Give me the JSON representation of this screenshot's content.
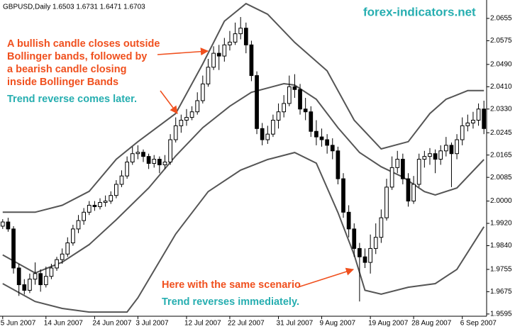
{
  "chart_data": {
    "type": "candlestick",
    "title": "GBPUSD,Daily  1.6503 1.6731 1.6471 1.6703",
    "watermark": "forex-indicators.net",
    "categories": [
      "5 Jun 2007",
      null,
      null,
      null,
      null,
      null,
      null,
      null,
      "14 Jun 2007",
      null,
      null,
      null,
      null,
      null,
      null,
      null,
      null,
      "24 Jun 2007",
      null,
      null,
      null,
      null,
      null,
      null,
      null,
      "3 Jul 2007",
      null,
      null,
      null,
      null,
      null,
      null,
      null,
      null,
      "12 Jul 2007",
      null,
      null,
      null,
      null,
      null,
      null,
      null,
      "22 Jul 2007",
      null,
      null,
      null,
      null,
      null,
      null,
      null,
      null,
      "31 Jul 2007",
      null,
      null,
      null,
      null,
      null,
      null,
      null,
      "9 Aug 2007",
      null,
      null,
      null,
      null,
      null,
      null,
      null,
      null,
      "19 Aug 2007",
      null,
      null,
      null,
      null,
      null,
      null,
      null,
      "28 Aug 2007",
      null,
      null,
      null,
      null,
      null,
      null,
      null,
      null,
      "6 Sep 2007",
      null,
      null,
      null,
      null
    ],
    "open": [
      1.991,
      1.9925,
      1.99,
      1.976,
      1.97,
      1.968,
      1.972,
      1.974,
      1.97,
      1.973,
      1.976,
      1.979,
      1.981,
      1.985,
      1.99,
      1.993,
      1.996,
      1.9985,
      1.998,
      1.9995,
      2.0,
      2.002,
      2.006,
      2.009,
      2.014,
      2.017,
      2.0175,
      2.016,
      2.0135,
      2.015,
      2.013,
      2.014,
      2.022,
      2.027,
      2.029,
      2.03,
      2.032,
      2.036,
      2.042,
      2.048,
      2.053,
      2.052,
      2.056,
      2.057,
      2.06,
      2.062,
      2.056,
      2.045,
      2.026,
      2.022,
      2.024,
      2.029,
      2.032,
      2.035,
      2.041,
      2.04,
      2.033,
      2.032,
      2.025,
      2.023,
      2.022,
      2.02,
      2.018,
      2.008,
      1.996,
      1.99,
      1.983,
      1.98,
      1.978,
      1.983,
      1.987,
      1.994,
      2.005,
      2.012,
      2.015,
      2.008,
      2.0,
      2.006,
      2.015,
      2.016,
      2.017,
      2.015,
      2.018,
      2.02,
      2.017,
      2.022,
      2.027,
      2.028,
      2.029,
      2.033
    ],
    "high": [
      1.9935,
      1.994,
      1.991,
      1.9775,
      1.972,
      1.974,
      1.978,
      1.9755,
      1.9765,
      1.9775,
      1.98,
      1.983,
      1.987,
      1.9915,
      1.995,
      1.9975,
      2.0,
      2.0,
      2.001,
      2.002,
      2.0035,
      2.0075,
      2.011,
      2.016,
      2.0195,
      2.02,
      2.0185,
      2.017,
      2.0165,
      2.016,
      2.0165,
      2.024,
      2.03,
      2.031,
      2.033,
      2.034,
      2.039,
      2.045,
      2.051,
      2.0555,
      2.056,
      2.0585,
      2.061,
      2.064,
      2.066,
      2.064,
      2.0575,
      2.0465,
      2.028,
      2.027,
      2.031,
      2.035,
      2.038,
      2.045,
      2.0455,
      2.042,
      2.037,
      2.034,
      2.029,
      2.026,
      2.024,
      2.0225,
      2.0195,
      2.01,
      1.9985,
      1.992,
      1.985,
      1.983,
      1.988,
      1.992,
      1.997,
      2.008,
      2.016,
      2.018,
      2.017,
      2.01,
      2.009,
      2.017,
      2.018,
      2.019,
      2.0185,
      2.02,
      2.023,
      2.021,
      2.024,
      2.03,
      2.031,
      2.032,
      2.035,
      2.036
    ],
    "low": [
      1.99,
      1.989,
      1.974,
      1.966,
      1.9665,
      1.967,
      1.97,
      1.9675,
      1.969,
      1.972,
      1.975,
      1.9775,
      1.98,
      1.984,
      1.9885,
      1.9915,
      1.995,
      1.9965,
      1.997,
      1.998,
      1.999,
      2.001,
      2.005,
      2.008,
      2.013,
      2.015,
      2.014,
      2.0115,
      2.012,
      2.01,
      2.0115,
      2.013,
      2.021,
      2.0245,
      2.027,
      2.029,
      2.031,
      2.035,
      2.041,
      2.047,
      2.047,
      2.05,
      2.054,
      2.056,
      2.058,
      2.053,
      2.043,
      2.024,
      2.02,
      2.0205,
      2.023,
      2.026,
      2.03,
      2.034,
      2.037,
      2.031,
      2.029,
      2.023,
      2.02,
      2.0195,
      2.017,
      2.015,
      2.006,
      1.994,
      1.987,
      1.98,
      1.964,
      1.976,
      1.974,
      1.981,
      1.985,
      1.993,
      2.004,
      2.01,
      2.006,
      1.998,
      1.999,
      2.005,
      2.012,
      2.013,
      2.01,
      2.013,
      2.016,
      2.005,
      2.015,
      2.02,
      2.025,
      2.026,
      2.027,
      2.024
    ],
    "close": [
      1.9925,
      1.99,
      1.976,
      1.97,
      1.968,
      1.972,
      1.974,
      1.97,
      1.973,
      1.976,
      1.979,
      1.981,
      1.985,
      1.99,
      1.993,
      1.996,
      1.9985,
      1.998,
      1.9995,
      2.0,
      2.002,
      2.006,
      2.009,
      2.014,
      2.017,
      2.0175,
      2.016,
      2.0135,
      2.015,
      2.013,
      2.014,
      2.022,
      2.027,
      2.029,
      2.03,
      2.032,
      2.036,
      2.042,
      2.048,
      2.053,
      2.052,
      2.056,
      2.057,
      2.06,
      2.062,
      2.056,
      2.045,
      2.026,
      2.022,
      2.024,
      2.029,
      2.032,
      2.035,
      2.041,
      2.04,
      2.033,
      2.032,
      2.025,
      2.023,
      2.022,
      2.02,
      2.018,
      2.008,
      1.996,
      1.99,
      1.983,
      1.98,
      1.978,
      1.983,
      1.987,
      1.994,
      2.005,
      2.012,
      2.015,
      2.008,
      2.0,
      2.006,
      2.015,
      2.016,
      2.017,
      2.015,
      2.018,
      2.02,
      2.017,
      2.022,
      2.027,
      2.028,
      2.029,
      2.033,
      2.026
    ],
    "up_color": "#ffffff",
    "down_color": "#000000",
    "lines": [
      {
        "color": "#555555",
        "x": [
          0,
          6,
          11,
          16,
          21,
          25,
          32,
          37,
          41,
          45,
          49,
          54,
          60,
          65,
          70,
          75,
          79,
          82,
          86,
          89
        ],
        "values": [
          1.996,
          1.996,
          1.9985,
          2.0035,
          2.015,
          2.0213,
          2.0314,
          2.0492,
          2.0645,
          2.0708,
          2.067,
          2.0569,
          2.0467,
          2.029,
          2.0187,
          2.0213,
          2.0314,
          2.0365,
          2.0396,
          2.0396
        ]
      },
      {
        "color": "#555555",
        "x": [
          0,
          6,
          11,
          16,
          21,
          27,
          32,
          37,
          42,
          46,
          52,
          54,
          58,
          62,
          66,
          70,
          74,
          78,
          80,
          84,
          89
        ],
        "values": [
          1.9807,
          1.9742,
          1.9781,
          1.9844,
          1.9933,
          2.0047,
          2.0162,
          2.0263,
          2.034,
          2.039,
          2.0421,
          2.0416,
          2.0365,
          2.0263,
          2.0174,
          2.0123,
          2.0086,
          2.0034,
          2.0022,
          2.0047,
          2.0149
        ]
      },
      {
        "color": "#555555",
        "x": [
          0,
          6,
          11,
          16,
          23,
          25,
          32,
          38,
          44,
          49,
          54,
          58,
          62,
          65,
          67,
          70,
          75,
          80,
          84,
          89
        ],
        "values": [
          1.9704,
          1.964,
          1.9615,
          1.9602,
          1.9602,
          1.9653,
          1.9882,
          2.0034,
          2.0111,
          2.0149,
          2.0174,
          2.0136,
          1.9959,
          1.9807,
          1.968,
          1.9666,
          1.9691,
          1.9704,
          1.9755,
          1.9908
        ]
      }
    ],
    "ylim": [
      1.9587,
      2.0721
    ],
    "yticks": [
      2.0655,
      2.0575,
      {
        "value": 2.049,
        "label": "2.0490"
      },
      {
        "value": 2.041,
        "label": "2.0410"
      },
      {
        "value": 2.033,
        "label": "2.0330"
      },
      2.0245,
      2.0165,
      2.0085,
      {
        "value": 2.0,
        "label": "2.0000"
      },
      {
        "value": 1.992,
        "label": "1.9920"
      },
      {
        "value": 1.984,
        "label": "1.9840"
      },
      1.9755,
      1.9675,
      1.9595
    ],
    "annotations": [
      {
        "lines": [
          "A bullish candle closes outside",
          "Bollinger bands, followed by",
          "a bearish candle closing",
          "inside Bollinger Bands"
        ],
        "color": "#f0501e"
      },
      {
        "text": "Trend reverse comes later.",
        "color": "#26aeb0"
      },
      {
        "text": "Here with the same scenario",
        "color": "#f0501e"
      },
      {
        "text": "Trend reverses immediately.",
        "color": "#26aeb0"
      }
    ]
  }
}
